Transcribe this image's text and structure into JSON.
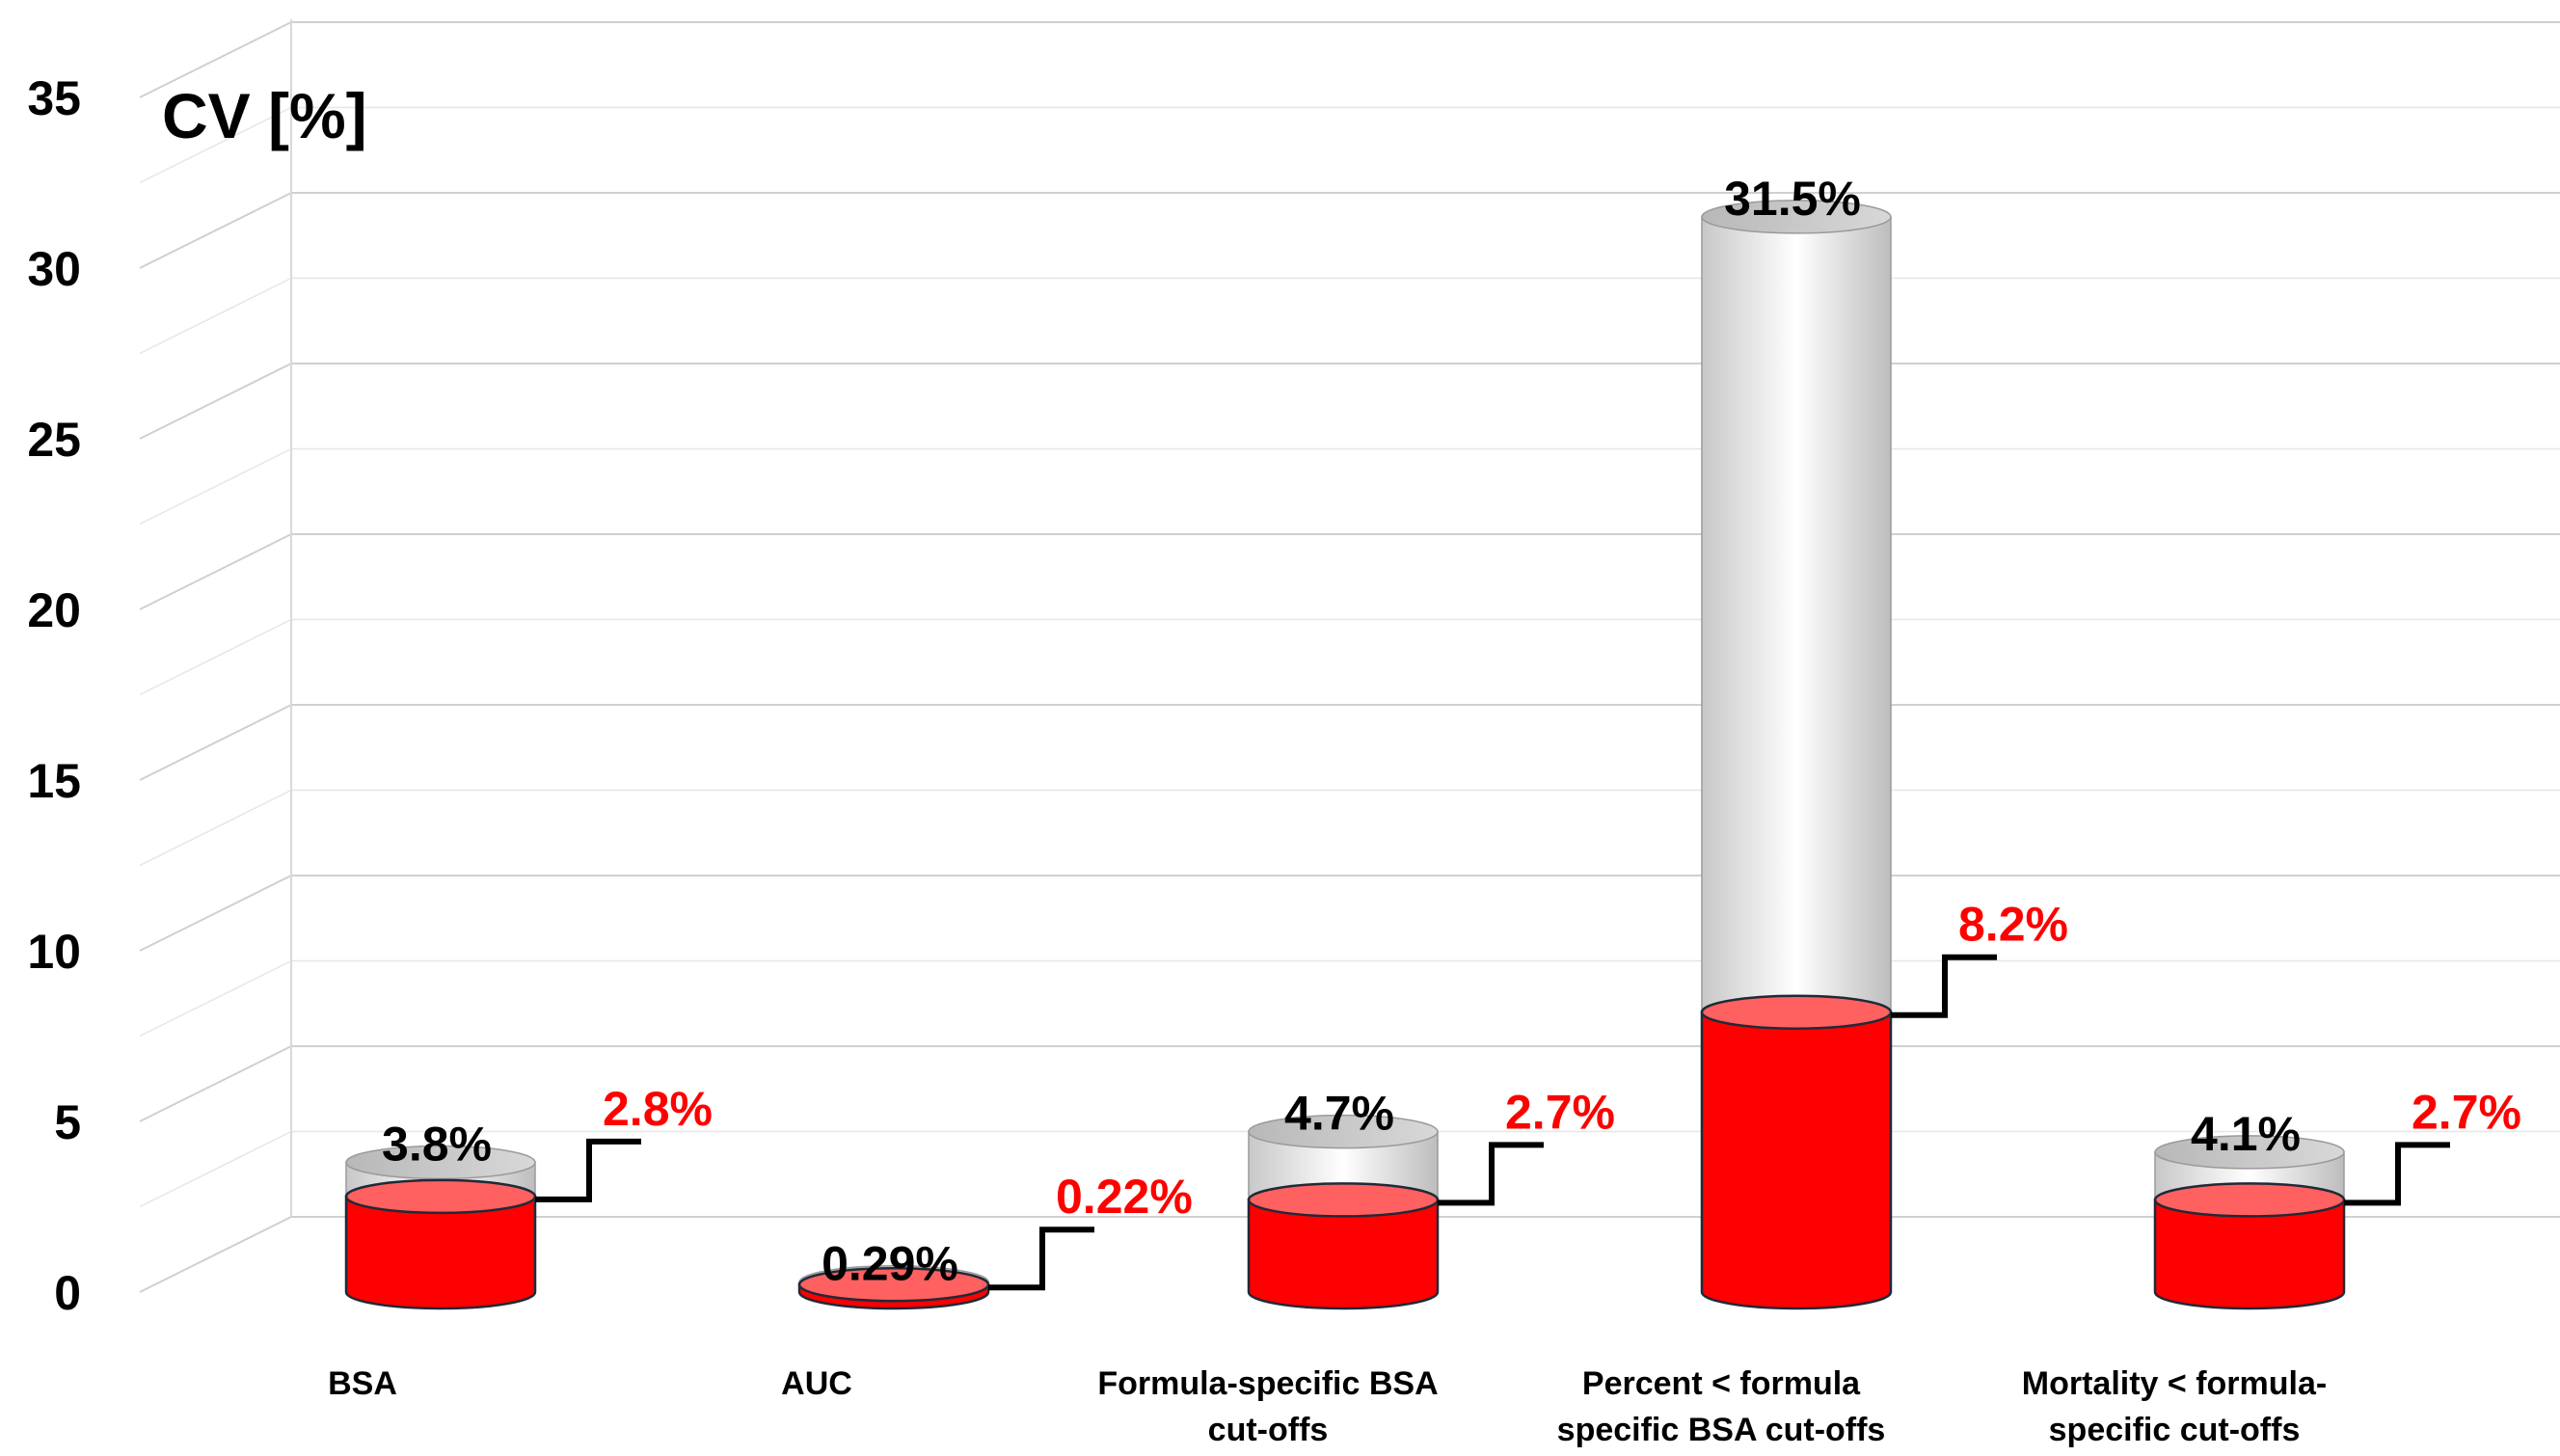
{
  "chart_data": {
    "type": "bar",
    "ylabel": "CV [%]",
    "ylim": [
      0,
      35
    ],
    "yticks": [
      0,
      5,
      10,
      15,
      20,
      25,
      30,
      35
    ],
    "grid": true,
    "categories": [
      [
        "BSA"
      ],
      [
        "AUC"
      ],
      [
        "Formula-specific BSA",
        "cut-offs"
      ],
      [
        "Percent < formula",
        "specific BSA cut-offs"
      ],
      [
        "Mortality < formula-",
        "specific cut-offs"
      ]
    ],
    "series": [
      {
        "values": [
          3.8,
          0.29,
          4.7,
          31.5,
          4.1
        ],
        "labels": [
          "3.8%",
          "0.29%",
          "4.7%",
          "31.5%",
          "4.1%"
        ],
        "color": "#000000"
      },
      {
        "values": [
          2.8,
          0.22,
          2.7,
          8.2,
          2.7
        ],
        "labels": [
          "2.8%",
          "0.22%",
          "2.7%",
          "8.2%",
          "2.7%"
        ],
        "color": "#ff0000"
      }
    ],
    "colors": {
      "outer_cylinder": "#e0e0e0",
      "inner_cylinder": "#ff0000",
      "grid": "#d9d9d9"
    }
  }
}
